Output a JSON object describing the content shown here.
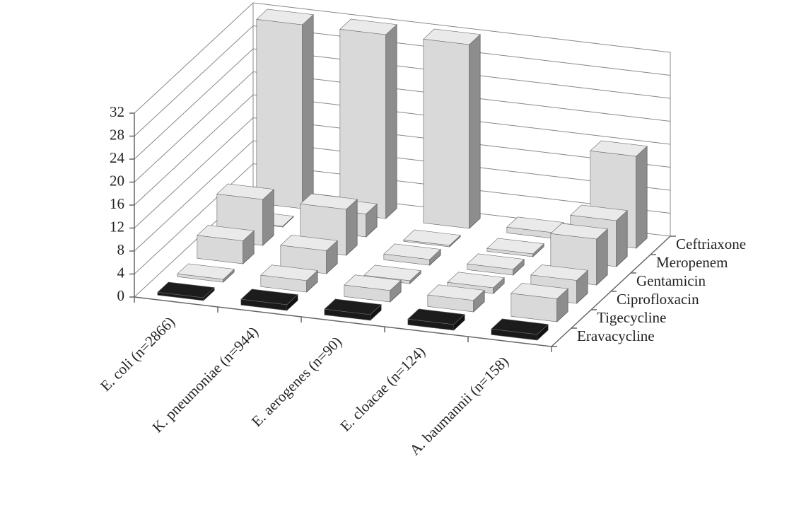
{
  "chart_data": {
    "type": "bar3d",
    "categories": [
      "E. coli (n=2866)",
      "K. pneumoniae (n=944)",
      "E. aerogenes (n=90)",
      "E. cloacae (n=124)",
      "A. baumannii (n=158)"
    ],
    "series": [
      {
        "name": "Eravacycline",
        "color": "#1a1a1a",
        "values": [
          0.5,
          1,
          1,
          1,
          1
        ]
      },
      {
        "name": "Tigecycline",
        "color": "#d9d9d9",
        "values": [
          0.5,
          2,
          2,
          2,
          4
        ]
      },
      {
        "name": "Ciprofloxacin",
        "color": "#d9d9d9",
        "values": [
          4,
          4,
          0.5,
          1,
          4
        ]
      },
      {
        "name": "Gentamicin",
        "color": "#d9d9d9",
        "values": [
          8,
          8,
          1,
          1,
          8
        ]
      },
      {
        "name": "Meropenem",
        "color": "#d9d9d9",
        "values": [
          0.12,
          4,
          0.25,
          0.5,
          8
        ]
      },
      {
        "name": "Ceftriaxone",
        "color": "#d9d9d9",
        "values": [
          32,
          32,
          32,
          1,
          16
        ]
      }
    ],
    "ylim": [
      0,
      32
    ],
    "yticks": [
      0,
      4,
      8,
      12,
      16,
      20,
      24,
      28,
      32
    ],
    "grid": true
  }
}
